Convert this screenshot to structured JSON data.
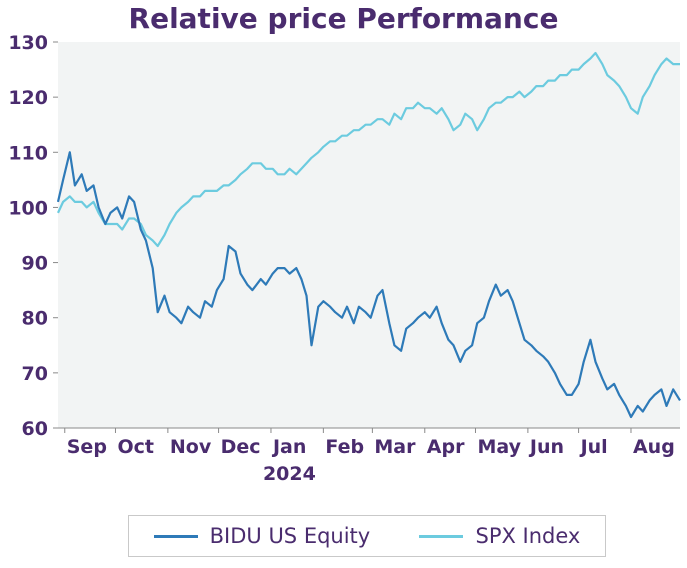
{
  "chart_data": {
    "type": "line",
    "title": "Relative price Performance",
    "xlabel": "",
    "ylabel": "",
    "ylim": [
      60,
      130
    ],
    "yticks": [
      60,
      70,
      80,
      90,
      100,
      110,
      120,
      130
    ],
    "x_range": [
      "2023-08-28",
      "2024-08-30"
    ],
    "xticks": [
      {
        "label": "Sep",
        "date": "2023-09-01"
      },
      {
        "label": "Oct",
        "date": "2023-10-01"
      },
      {
        "label": "Nov",
        "date": "2023-11-01"
      },
      {
        "label": "Dec",
        "date": "2023-12-01"
      },
      {
        "label": "Jan",
        "date": "2024-01-01",
        "sublabel": "2024"
      },
      {
        "label": "Feb",
        "date": "2024-02-01"
      },
      {
        "label": "Mar",
        "date": "2024-03-01"
      },
      {
        "label": "Apr",
        "date": "2024-04-01"
      },
      {
        "label": "May",
        "date": "2024-05-01"
      },
      {
        "label": "Jun",
        "date": "2024-06-01"
      },
      {
        "label": "Jul",
        "date": "2024-07-01"
      },
      {
        "label": "Aug",
        "date": "2024-08-01"
      }
    ],
    "grid": false,
    "legend_position": "bottom",
    "plot_background": "#f2f4f4",
    "series": [
      {
        "name": "BIDU US Equity",
        "color": "#2e7ab8",
        "x": [
          "2023-08-28",
          "2023-08-31",
          "2023-09-04",
          "2023-09-07",
          "2023-09-11",
          "2023-09-14",
          "2023-09-18",
          "2023-09-21",
          "2023-09-25",
          "2023-09-28",
          "2023-10-02",
          "2023-10-05",
          "2023-10-09",
          "2023-10-12",
          "2023-10-16",
          "2023-10-19",
          "2023-10-23",
          "2023-10-26",
          "2023-10-30",
          "2023-11-02",
          "2023-11-06",
          "2023-11-09",
          "2023-11-13",
          "2023-11-16",
          "2023-11-20",
          "2023-11-23",
          "2023-11-27",
          "2023-11-30",
          "2023-12-04",
          "2023-12-07",
          "2023-12-11",
          "2023-12-14",
          "2023-12-18",
          "2023-12-21",
          "2023-12-26",
          "2023-12-29",
          "2024-01-02",
          "2024-01-05",
          "2024-01-09",
          "2024-01-12",
          "2024-01-16",
          "2024-01-19",
          "2024-01-22",
          "2024-01-25",
          "2024-01-29",
          "2024-02-01",
          "2024-02-05",
          "2024-02-08",
          "2024-02-12",
          "2024-02-15",
          "2024-02-19",
          "2024-02-22",
          "2024-02-26",
          "2024-02-29",
          "2024-03-04",
          "2024-03-07",
          "2024-03-11",
          "2024-03-14",
          "2024-03-18",
          "2024-03-21",
          "2024-03-25",
          "2024-03-28",
          "2024-04-01",
          "2024-04-04",
          "2024-04-08",
          "2024-04-11",
          "2024-04-15",
          "2024-04-18",
          "2024-04-22",
          "2024-04-25",
          "2024-04-29",
          "2024-05-02",
          "2024-05-06",
          "2024-05-09",
          "2024-05-13",
          "2024-05-16",
          "2024-05-20",
          "2024-05-23",
          "2024-05-27",
          "2024-05-30",
          "2024-06-03",
          "2024-06-06",
          "2024-06-10",
          "2024-06-13",
          "2024-06-17",
          "2024-06-20",
          "2024-06-24",
          "2024-06-27",
          "2024-07-01",
          "2024-07-04",
          "2024-07-08",
          "2024-07-11",
          "2024-07-15",
          "2024-07-18",
          "2024-07-22",
          "2024-07-25",
          "2024-07-29",
          "2024-08-01",
          "2024-08-05",
          "2024-08-08",
          "2024-08-12",
          "2024-08-15",
          "2024-08-19",
          "2024-08-22",
          "2024-08-26",
          "2024-08-30"
        ],
        "values": [
          101,
          105,
          110,
          104,
          106,
          103,
          104,
          100,
          97,
          99,
          100,
          98,
          102,
          101,
          96,
          94,
          89,
          81,
          84,
          81,
          80,
          79,
          82,
          81,
          80,
          83,
          82,
          85,
          87,
          93,
          92,
          88,
          86,
          85,
          87,
          86,
          88,
          89,
          89,
          88,
          89,
          87,
          84,
          75,
          82,
          83,
          82,
          81,
          80,
          82,
          79,
          82,
          81,
          80,
          84,
          85,
          79,
          75,
          74,
          78,
          79,
          80,
          81,
          80,
          82,
          79,
          76,
          75,
          72,
          74,
          75,
          79,
          80,
          83,
          86,
          84,
          85,
          83,
          79,
          76,
          75,
          74,
          73,
          72,
          70,
          68,
          66,
          66,
          68,
          72,
          76,
          72,
          69,
          67,
          68,
          66,
          64,
          62,
          64,
          63,
          65,
          66,
          67,
          64,
          67,
          65
        ]
      },
      {
        "name": "SPX Index",
        "color": "#6ccbdf",
        "x": [
          "2023-08-28",
          "2023-08-31",
          "2023-09-04",
          "2023-09-07",
          "2023-09-11",
          "2023-09-14",
          "2023-09-18",
          "2023-09-21",
          "2023-09-25",
          "2023-09-28",
          "2023-10-02",
          "2023-10-05",
          "2023-10-09",
          "2023-10-12",
          "2023-10-16",
          "2023-10-19",
          "2023-10-23",
          "2023-10-26",
          "2023-10-30",
          "2023-11-02",
          "2023-11-06",
          "2023-11-09",
          "2023-11-13",
          "2023-11-16",
          "2023-11-20",
          "2023-11-23",
          "2023-11-27",
          "2023-11-30",
          "2023-12-04",
          "2023-12-07",
          "2023-12-11",
          "2023-12-14",
          "2023-12-18",
          "2023-12-21",
          "2023-12-26",
          "2023-12-29",
          "2024-01-02",
          "2024-01-05",
          "2024-01-09",
          "2024-01-12",
          "2024-01-16",
          "2024-01-19",
          "2024-01-22",
          "2024-01-25",
          "2024-01-29",
          "2024-02-01",
          "2024-02-05",
          "2024-02-08",
          "2024-02-12",
          "2024-02-15",
          "2024-02-19",
          "2024-02-22",
          "2024-02-26",
          "2024-02-29",
          "2024-03-04",
          "2024-03-07",
          "2024-03-11",
          "2024-03-14",
          "2024-03-18",
          "2024-03-21",
          "2024-03-25",
          "2024-03-28",
          "2024-04-01",
          "2024-04-04",
          "2024-04-08",
          "2024-04-11",
          "2024-04-15",
          "2024-04-18",
          "2024-04-22",
          "2024-04-25",
          "2024-04-29",
          "2024-05-02",
          "2024-05-06",
          "2024-05-09",
          "2024-05-13",
          "2024-05-16",
          "2024-05-20",
          "2024-05-23",
          "2024-05-27",
          "2024-05-30",
          "2024-06-03",
          "2024-06-06",
          "2024-06-10",
          "2024-06-13",
          "2024-06-17",
          "2024-06-20",
          "2024-06-24",
          "2024-06-27",
          "2024-07-01",
          "2024-07-04",
          "2024-07-08",
          "2024-07-11",
          "2024-07-15",
          "2024-07-18",
          "2024-07-22",
          "2024-07-25",
          "2024-07-29",
          "2024-08-01",
          "2024-08-05",
          "2024-08-08",
          "2024-08-12",
          "2024-08-15",
          "2024-08-19",
          "2024-08-22",
          "2024-08-26",
          "2024-08-30"
        ],
        "values": [
          99,
          101,
          102,
          101,
          101,
          100,
          101,
          99,
          97,
          97,
          97,
          96,
          98,
          98,
          97,
          95,
          94,
          93,
          95,
          97,
          99,
          100,
          101,
          102,
          102,
          103,
          103,
          103,
          104,
          104,
          105,
          106,
          107,
          108,
          108,
          107,
          107,
          106,
          106,
          107,
          106,
          107,
          108,
          109,
          110,
          111,
          112,
          112,
          113,
          113,
          114,
          114,
          115,
          115,
          116,
          116,
          115,
          117,
          116,
          118,
          118,
          119,
          118,
          118,
          117,
          118,
          116,
          114,
          115,
          117,
          116,
          114,
          116,
          118,
          119,
          119,
          120,
          120,
          121,
          120,
          121,
          122,
          122,
          123,
          123,
          124,
          124,
          125,
          125,
          126,
          127,
          128,
          126,
          124,
          123,
          122,
          120,
          118,
          117,
          120,
          122,
          124,
          126,
          127,
          126,
          126
        ]
      }
    ]
  }
}
